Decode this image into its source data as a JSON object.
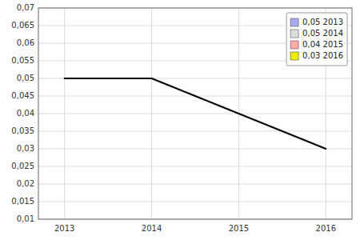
{
  "chart_data": {
    "type": "line",
    "x": [
      2013,
      2014,
      2015,
      2016
    ],
    "values": [
      0.05,
      0.05,
      0.04,
      0.03
    ],
    "color": "#000000",
    "xlim": [
      2012.7,
      2016.3
    ],
    "xticks": [
      2013,
      2014,
      2015,
      2016
    ],
    "ylim": [
      0.01,
      0.07
    ],
    "yticks": [
      {
        "value": 0.01,
        "label": "0,01"
      },
      {
        "value": 0.015,
        "label": "0,015"
      },
      {
        "value": 0.02,
        "label": "0,02"
      },
      {
        "value": 0.025,
        "label": "0,025"
      },
      {
        "value": 0.03,
        "label": "0,03"
      },
      {
        "value": 0.035,
        "label": "0,035"
      },
      {
        "value": 0.04,
        "label": "0,04"
      },
      {
        "value": 0.045,
        "label": "0,045"
      },
      {
        "value": 0.05,
        "label": "0,05"
      },
      {
        "value": 0.055,
        "label": "0,055"
      },
      {
        "value": 0.06,
        "label": "0,06"
      },
      {
        "value": 0.065,
        "label": "0,065"
      },
      {
        "value": 0.07,
        "label": "0,07"
      }
    ],
    "grid": true,
    "legend": "upper right",
    "legend_entries": [
      {
        "label": "0,05 2013",
        "color": "#aaaaee"
      },
      {
        "label": "0,05 2014",
        "color": "#dddddd"
      },
      {
        "label": "0,04 2015",
        "color": "#ffaaaa"
      },
      {
        "label": "0,03 2016",
        "color": "#eeee00"
      }
    ]
  }
}
